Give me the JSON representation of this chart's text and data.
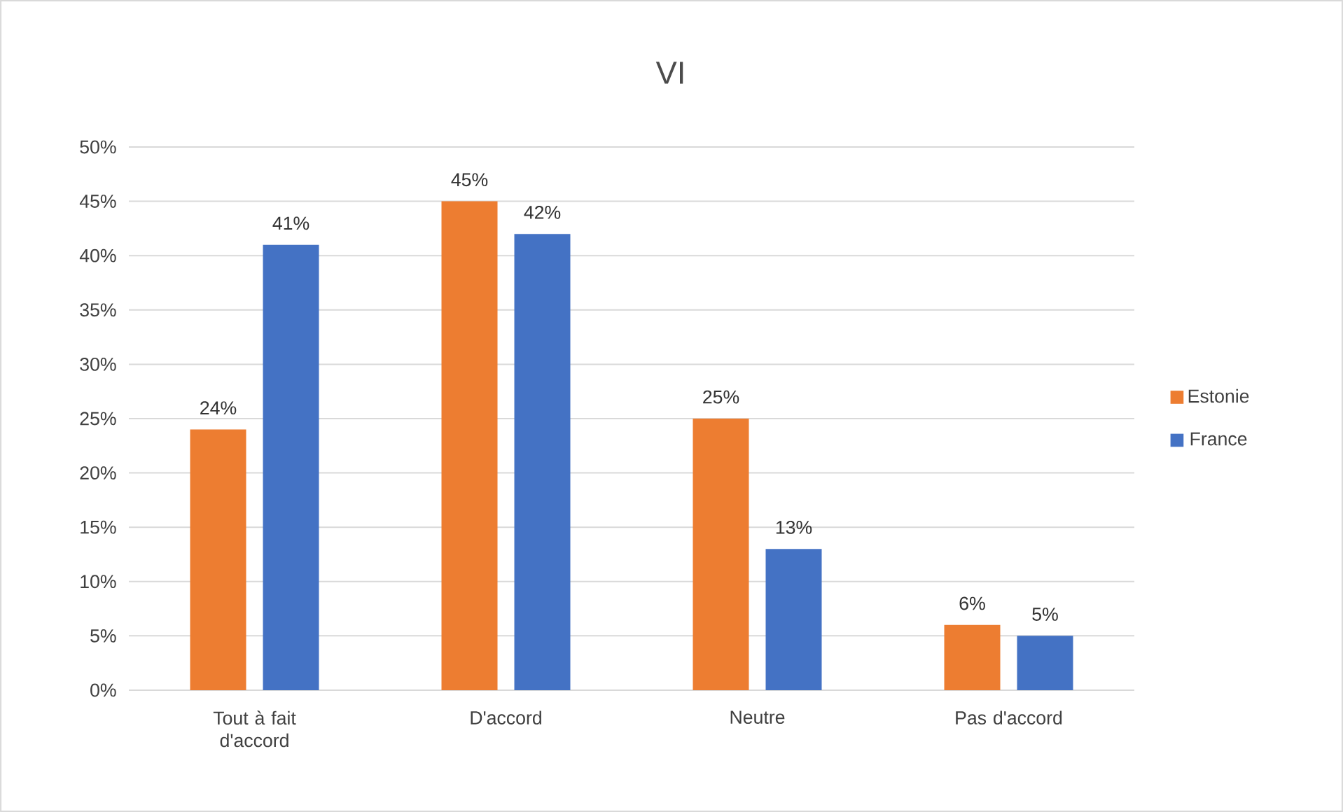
{
  "chart_data": {
    "type": "bar",
    "title": "VI",
    "categories": [
      "Tout à fait d'accord",
      "D'accord",
      "Neutre",
      "Pas d'accord"
    ],
    "series": [
      {
        "name": "Estonie",
        "color": "#ed7d31",
        "values": [
          24,
          45,
          25,
          6
        ],
        "value_labels": [
          "24%",
          "45%",
          "25%",
          "6%"
        ]
      },
      {
        "name": "France",
        "color": "#4472c4",
        "values": [
          41,
          42,
          13,
          5
        ],
        "value_labels": [
          "41%",
          "42%",
          "13%",
          "5%"
        ]
      }
    ],
    "ylim": [
      0,
      50
    ],
    "yticks": [
      {
        "value": 0,
        "label": "0%"
      },
      {
        "value": 5,
        "label": "5%"
      },
      {
        "value": 10,
        "label": "10%"
      },
      {
        "value": 15,
        "label": "15%"
      },
      {
        "value": 20,
        "label": "20%"
      },
      {
        "value": 25,
        "label": "25%"
      },
      {
        "value": 30,
        "label": "30%"
      },
      {
        "value": 35,
        "label": "35%"
      },
      {
        "value": 40,
        "label": "40%"
      },
      {
        "value": 45,
        "label": "45%"
      },
      {
        "value": 50,
        "label": "50%"
      }
    ],
    "grid": "y",
    "legend": "right"
  }
}
